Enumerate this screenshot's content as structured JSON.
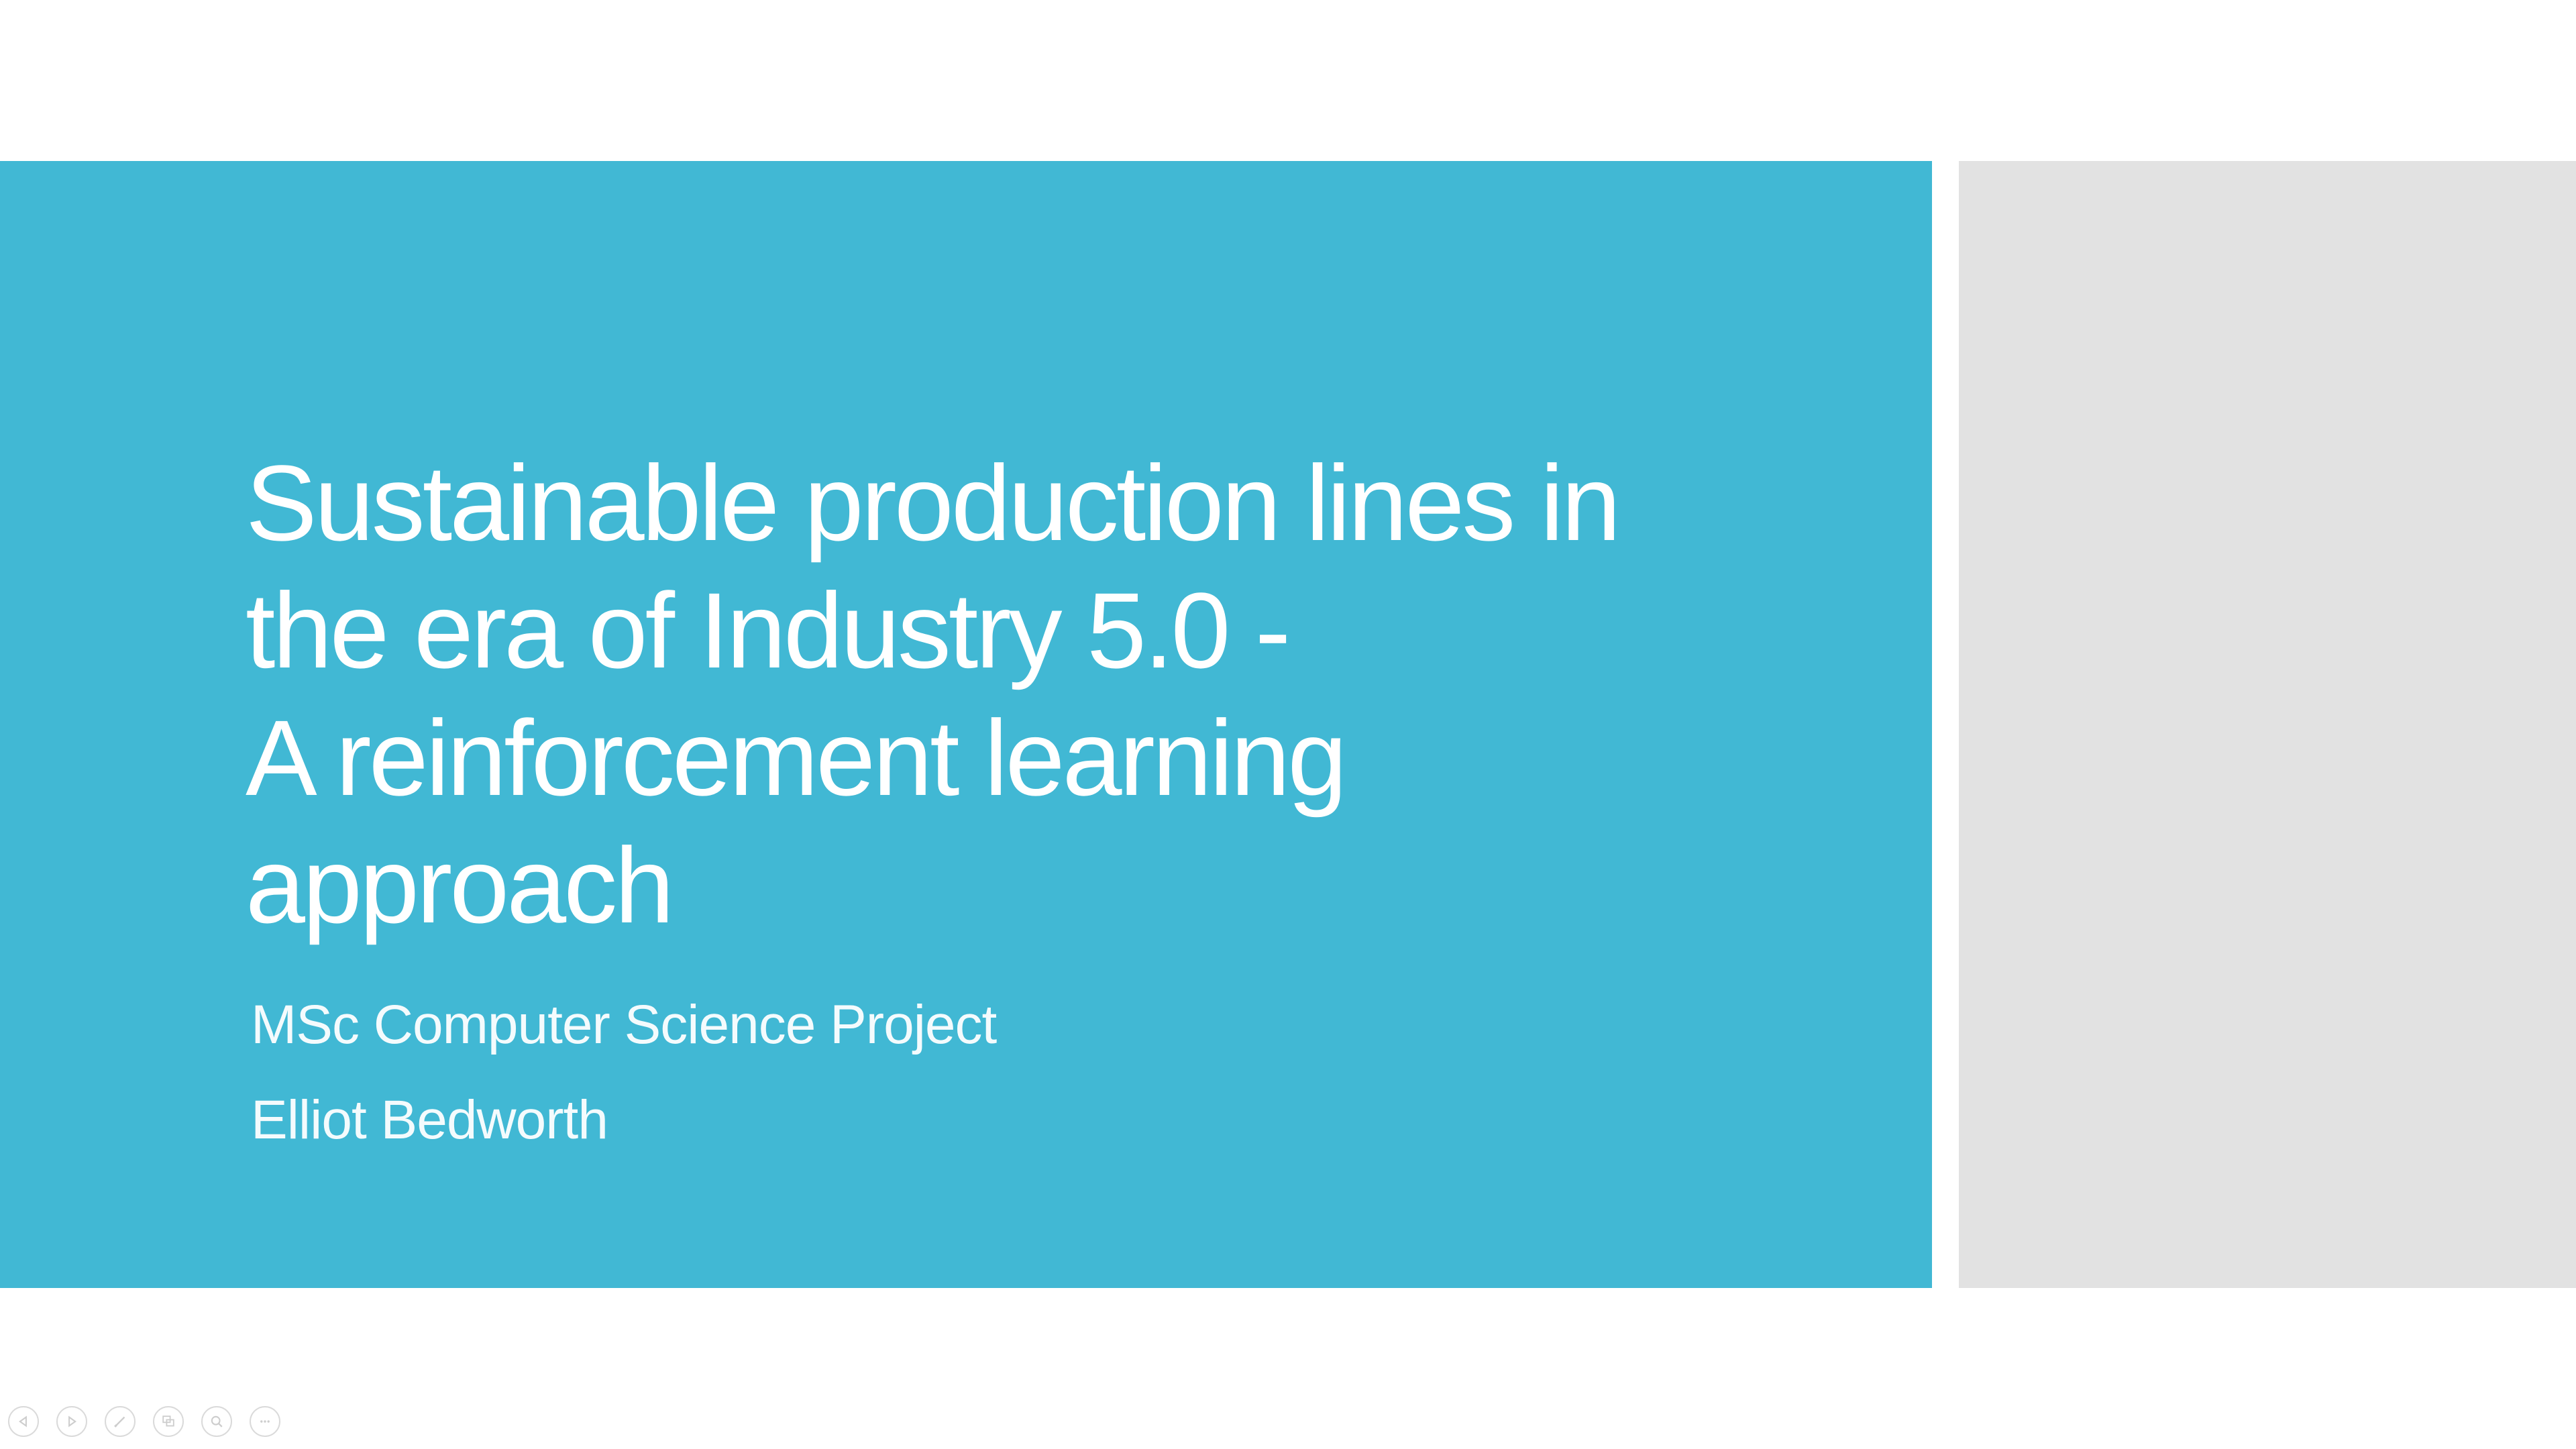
{
  "slide": {
    "title_lines": [
      "Sustainable production lines in",
      "the era of Industry 5.0 -",
      "A reinforcement learning",
      "approach"
    ],
    "subtitle_line1": "MSc Computer Science Project",
    "subtitle_line2": "Elliot Bedworth"
  },
  "colors": {
    "accent_band": "#41b8d4",
    "side_panel": "#e2e2e2",
    "background": "#ffffff",
    "text": "#ffffff"
  },
  "presenter_toolbar": {
    "buttons": [
      {
        "icon": "previous-icon"
      },
      {
        "icon": "next-icon"
      },
      {
        "icon": "pen-icon"
      },
      {
        "icon": "slides-overview-icon"
      },
      {
        "icon": "zoom-icon"
      },
      {
        "icon": "more-options-icon"
      }
    ]
  }
}
